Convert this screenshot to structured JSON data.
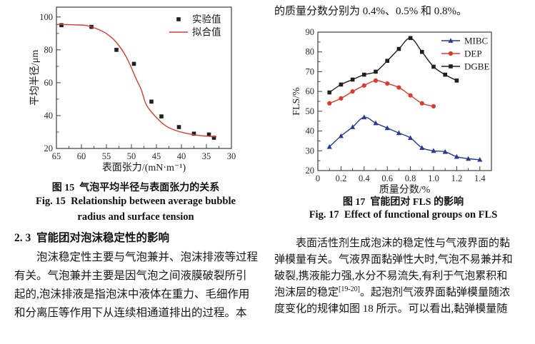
{
  "colors": {
    "red": "#de3a2e",
    "blue": "#2a3a8e",
    "dark": "#1f1f1f",
    "axis": "#3e3e3e"
  },
  "left_column": {
    "fig15_caption_cn": "图 15  气泡平均半径与表面张力的关系",
    "fig15_caption_en_line1": "Fig. 15  Relationship between average bubble",
    "fig15_caption_en_line2": "radius and surface tension",
    "section_number": "2. 3",
    "section_title": "官能团对泡沫稳定性的影响",
    "paragraph": {
      "line1": "泡沫稳定性主要与气泡兼并、泡沫排液等过程",
      "line2": "有关。气泡兼并主要是因气泡之间液膜破裂所引",
      "line3": "起的,泡沫排液是指泡沫中液体在重力、毛细作用",
      "line4": "和分离压等作用下从连续相通道排出的过程。本"
    }
  },
  "right_column": {
    "top_line": "的质量分数分别为 0.4%、0.5% 和 0.8%。",
    "fig17_caption_cn": "图 17  官能团对 FLS 的影响",
    "fig17_caption_en": "Fig. 17  Effect of functional groups on FLS",
    "paragraph": {
      "line1": "表面活性剂生成泡沫的稳定性与气液界面的黏",
      "line2": "弹模量有关。气液界面黏弹性大时,气泡不易兼并和",
      "line3": "破裂,携液能力强,水分不易流失,有利于气泡累积和",
      "line4_pre": "泡沫层的稳定",
      "line4_sup": "[19-20]",
      "line4_post": "。起泡剂气液界面黏弹模量随浓",
      "line5": "度变化的规律如图 18 所示。可以看出,黏弹模量随"
    }
  },
  "chart_data": [
    {
      "id": "fig15",
      "type": "scatter",
      "title": "",
      "xlabel": "表面张力/(mN·m⁻¹)",
      "ylabel": "平均半径/μm",
      "xlim": [
        65,
        30
      ],
      "ylim": [
        20,
        106
      ],
      "xticks": [
        65,
        60,
        55,
        50,
        45,
        40,
        35,
        30
      ],
      "xtick_labels": [
        "65",
        "60",
        "55",
        "50",
        "45",
        "40",
        "35",
        "30"
      ],
      "yticks": [
        20,
        40,
        60,
        80,
        100
      ],
      "ytick_labels": [
        "20",
        "40",
        "60",
        "80",
        "100"
      ],
      "grid": false,
      "legend_position": "top-right",
      "series": [
        {
          "name": "实验值",
          "color": "#1f1f1f",
          "marker": "square",
          "line": false,
          "x": [
            64,
            58,
            53,
            49.5,
            46,
            44,
            40.5,
            37.5,
            34.5,
            33.5
          ],
          "y": [
            95,
            94,
            80,
            71.5,
            48.5,
            39.5,
            33,
            29,
            28.5,
            26.5
          ]
        },
        {
          "name": "拟合值",
          "color": "#de3a2e",
          "marker": null,
          "line": true,
          "x": [
            65,
            63,
            61,
            59,
            57,
            55,
            53,
            51,
            49,
            48,
            47,
            45,
            43,
            41,
            39,
            37,
            35,
            33
          ],
          "y": [
            95.5,
            95.4,
            95.2,
            94.8,
            92.9,
            89.9,
            84.5,
            75.5,
            62,
            55.5,
            46.5,
            38.8,
            33.5,
            30.8,
            29.2,
            28.1,
            27.5,
            27.1
          ]
        }
      ]
    },
    {
      "id": "fig17",
      "type": "line",
      "title": "",
      "xlabel": "质量分数/%",
      "ylabel": "FLS/%",
      "xlim": [
        0,
        1.5
      ],
      "ylim": [
        20,
        90
      ],
      "xticks": [
        0,
        0.2,
        0.4,
        0.6,
        0.8,
        1.0,
        1.2,
        1.4
      ],
      "xtick_labels": [
        "0",
        "0.2",
        "0.4",
        "0.6",
        "0.8",
        "1.0",
        "1.2",
        "1.4"
      ],
      "yticks": [
        20,
        30,
        40,
        50,
        60,
        70,
        80,
        90
      ],
      "ytick_labels": [
        "20",
        "30",
        "40",
        "50",
        "60",
        "70",
        "80",
        "90"
      ],
      "grid": false,
      "legend_position": "top-right",
      "series": [
        {
          "name": "MIBC",
          "color": "#2a3a8e",
          "marker": "triangle",
          "line": true,
          "x": [
            0.1,
            0.2,
            0.3,
            0.4,
            0.5,
            0.6,
            0.7,
            0.8,
            0.9,
            1.0,
            1.1,
            1.2,
            1.3,
            1.4
          ],
          "y": [
            32,
            37.5,
            42,
            47,
            44,
            41.5,
            39,
            36.5,
            31.5,
            30,
            29.5,
            27,
            26,
            25.5
          ]
        },
        {
          "name": "DEP",
          "color": "#de3a2e",
          "marker": "circle",
          "line": true,
          "x": [
            0.1,
            0.2,
            0.3,
            0.4,
            0.5,
            0.6,
            0.7,
            0.8,
            0.9,
            1.0
          ],
          "y": [
            54,
            56.5,
            60,
            63,
            65.5,
            64,
            62,
            58,
            54,
            52.5
          ]
        },
        {
          "name": "DGBE",
          "color": "#1f1f1f",
          "marker": "square",
          "line": true,
          "x": [
            0.1,
            0.2,
            0.3,
            0.4,
            0.5,
            0.6,
            0.7,
            0.8,
            0.9,
            1.0,
            1.1,
            1.2
          ],
          "y": [
            59.5,
            63.5,
            66,
            68.5,
            70,
            75.5,
            81.5,
            87,
            80,
            72.5,
            68.5,
            65.5
          ]
        }
      ]
    }
  ]
}
